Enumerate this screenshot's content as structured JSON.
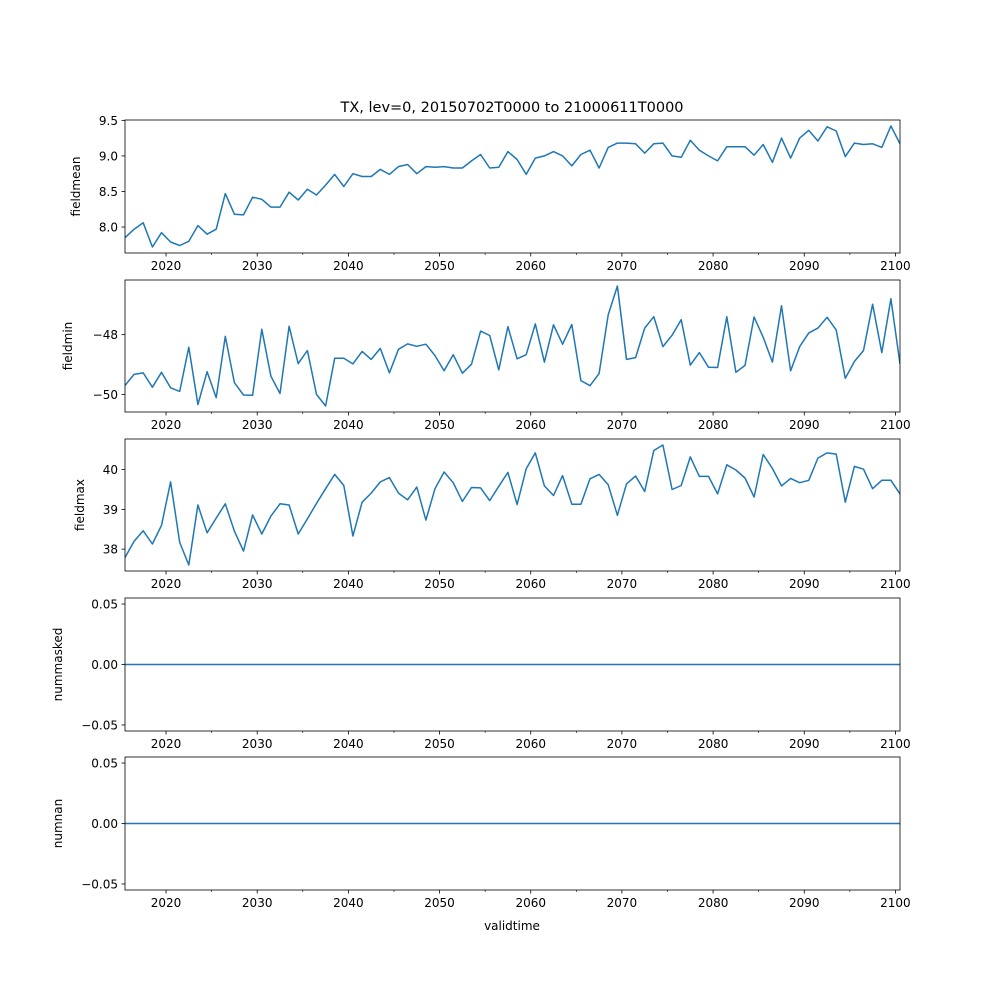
{
  "chart_data": {
    "type": "line",
    "title": "TX, lev=0, 20150702T0000 to 21000611T0000",
    "xlabel": "validtime",
    "x_start_year": 2015.5,
    "x_step_years": 1,
    "xlim": [
      2015.5,
      2100.5
    ],
    "xticks": [
      2020,
      2030,
      2040,
      2050,
      2060,
      2070,
      2080,
      2090,
      2100
    ],
    "xtick_labels": [
      "2020",
      "2030",
      "2040",
      "2050",
      "2060",
      "2070",
      "2080",
      "2090",
      "2100"
    ],
    "x_minor_ticks": [
      2025,
      2035,
      2045,
      2055,
      2065,
      2075,
      2085,
      2095
    ],
    "line_color": "#1f77b4",
    "grid": false,
    "subplots": [
      {
        "ylabel": "fieldmean",
        "ylim": [
          7.635,
          9.505
        ],
        "yticks": [
          8.0,
          8.5,
          9.0,
          9.5
        ],
        "ytick_labels": [
          "8.0",
          "8.5",
          "9.0",
          "9.5"
        ],
        "values": [
          7.85,
          7.97,
          8.06,
          7.72,
          7.92,
          7.79,
          7.74,
          7.8,
          8.02,
          7.9,
          7.97,
          8.47,
          8.18,
          8.17,
          8.42,
          8.39,
          8.28,
          8.28,
          8.49,
          8.38,
          8.53,
          8.45,
          8.59,
          8.74,
          8.57,
          8.75,
          8.71,
          8.71,
          8.81,
          8.74,
          8.85,
          8.88,
          8.75,
          8.85,
          8.84,
          8.85,
          8.83,
          8.83,
          8.93,
          9.02,
          8.83,
          8.84,
          9.06,
          8.95,
          8.74,
          8.97,
          9.0,
          9.06,
          9.0,
          8.86,
          9.02,
          9.08,
          8.83,
          9.12,
          9.18,
          9.18,
          9.17,
          9.04,
          9.17,
          9.18,
          9.0,
          8.98,
          9.22,
          9.08,
          9.0,
          8.93,
          9.13,
          9.13,
          9.13,
          9.01,
          9.16,
          8.91,
          9.25,
          8.97,
          9.25,
          9.36,
          9.21,
          9.41,
          9.35,
          8.99,
          9.18,
          9.16,
          9.17,
          9.12,
          9.42,
          9.17
        ]
      },
      {
        "ylabel": "fieldmin",
        "ylim": [
          -50.59,
          -46.17
        ],
        "yticks": [
          -50,
          -48
        ],
        "ytick_labels": [
          "−50",
          "−48"
        ],
        "values": [
          -49.7,
          -49.33,
          -49.28,
          -49.76,
          -49.26,
          -49.78,
          -49.9,
          -48.42,
          -50.34,
          -49.24,
          -50.11,
          -48.06,
          -49.61,
          -50.02,
          -50.03,
          -47.82,
          -49.39,
          -49.97,
          -47.72,
          -48.97,
          -48.53,
          -50.0,
          -50.39,
          -48.79,
          -48.79,
          -48.98,
          -48.56,
          -48.83,
          -48.46,
          -49.28,
          -48.49,
          -48.31,
          -48.39,
          -48.32,
          -48.7,
          -49.21,
          -48.67,
          -49.29,
          -48.99,
          -47.88,
          -48.03,
          -49.18,
          -47.73,
          -48.81,
          -48.67,
          -47.64,
          -48.92,
          -47.67,
          -48.32,
          -47.66,
          -49.54,
          -49.71,
          -49.3,
          -47.34,
          -46.37,
          -48.83,
          -48.77,
          -47.78,
          -47.4,
          -48.4,
          -48.02,
          -47.5,
          -49.02,
          -48.6,
          -49.09,
          -49.1,
          -47.4,
          -49.26,
          -49.03,
          -47.41,
          -48.09,
          -48.92,
          -47.03,
          -49.21,
          -48.4,
          -47.94,
          -47.78,
          -47.42,
          -47.84,
          -49.46,
          -48.9,
          -48.53,
          -46.98,
          -48.6,
          -46.8,
          -48.98
        ]
      },
      {
        "ylabel": "fieldmax",
        "ylim": [
          37.45,
          40.77
        ],
        "yticks": [
          38,
          39,
          40
        ],
        "ytick_labels": [
          "38",
          "39",
          "40"
        ],
        "values": [
          37.79,
          38.2,
          38.46,
          38.13,
          38.6,
          39.69,
          38.17,
          37.6,
          39.11,
          38.41,
          38.78,
          39.14,
          38.45,
          37.95,
          38.86,
          38.38,
          38.83,
          39.14,
          39.11,
          38.38,
          38.76,
          39.15,
          39.52,
          39.88,
          39.6,
          38.33,
          39.18,
          39.41,
          39.69,
          39.8,
          39.41,
          39.24,
          39.56,
          38.73,
          39.52,
          39.94,
          39.67,
          39.2,
          39.55,
          39.54,
          39.22,
          39.58,
          39.93,
          39.12,
          40.02,
          40.42,
          39.59,
          39.35,
          39.85,
          39.13,
          39.13,
          39.77,
          39.88,
          39.62,
          38.85,
          39.64,
          39.84,
          39.45,
          40.48,
          40.62,
          39.5,
          39.6,
          40.32,
          39.83,
          39.83,
          39.39,
          40.12,
          39.99,
          39.79,
          39.31,
          40.38,
          40.03,
          39.59,
          39.78,
          39.67,
          39.73,
          40.29,
          40.42,
          40.39,
          39.18,
          40.08,
          40.01,
          39.52,
          39.73,
          39.73,
          39.39
        ]
      },
      {
        "ylabel": "nummasked",
        "ylim": [
          -0.055,
          0.055
        ],
        "yticks": [
          -0.05,
          0.0,
          0.05
        ],
        "ytick_labels": [
          "−0.05",
          "0.00",
          "0.05"
        ],
        "constant_value": 0
      },
      {
        "ylabel": "numnan",
        "ylim": [
          -0.055,
          0.055
        ],
        "yticks": [
          -0.05,
          0.0,
          0.05
        ],
        "ytick_labels": [
          "−0.05",
          "0.00",
          "0.05"
        ],
        "constant_value": 0
      }
    ]
  }
}
